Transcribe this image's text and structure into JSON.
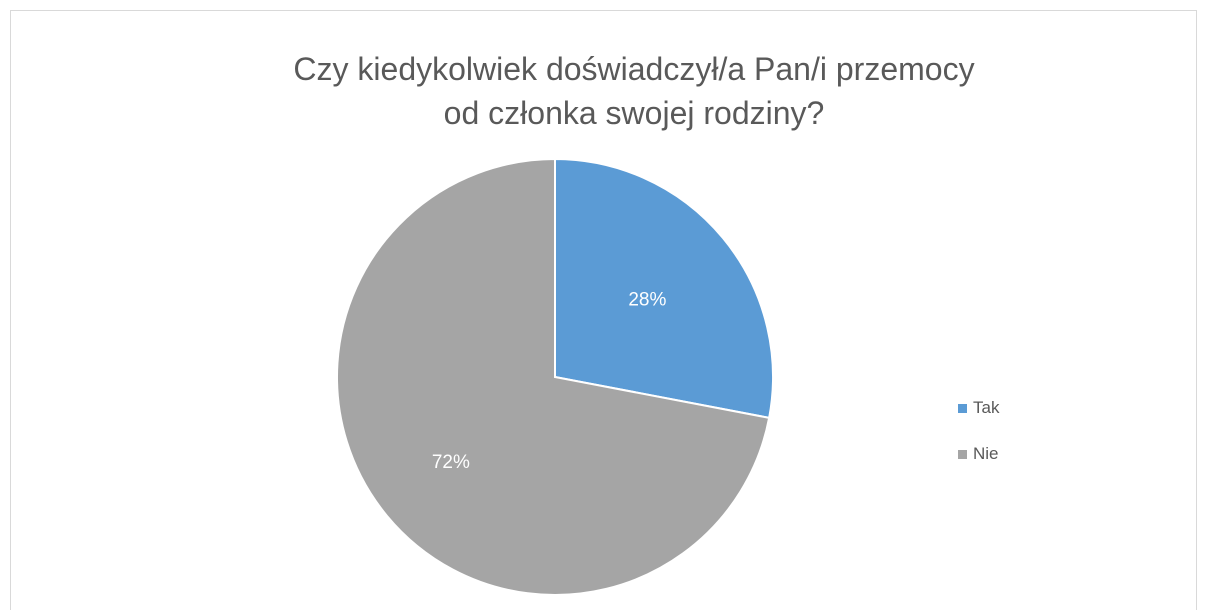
{
  "chart_data": {
    "type": "pie",
    "title_lines": [
      "Czy kiedykolwiek doświadczył/a Pan/i przemocy",
      "od członka swojej rodziny?"
    ],
    "categories": [
      "Tak",
      "Nie"
    ],
    "values": [
      28,
      72
    ],
    "labels": [
      "28%",
      "72%"
    ],
    "colors": [
      "#5b9bd5",
      "#a5a5a5"
    ],
    "legend_position": "right"
  }
}
